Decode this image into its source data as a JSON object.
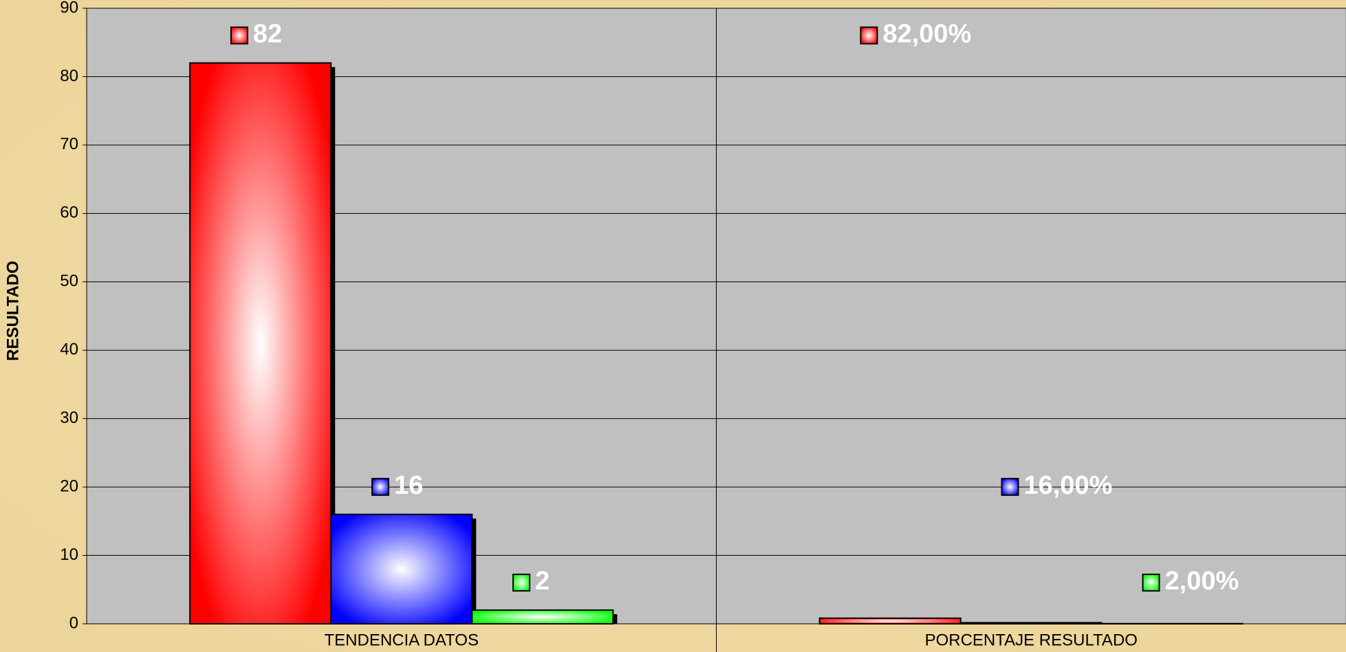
{
  "chart_data": {
    "type": "bar",
    "categories": [
      "TENDENCIA DATOS",
      "PORCENTAJE RESULTADO"
    ],
    "series": [
      {
        "color": "#ff0000",
        "values": [
          82,
          0.82
        ],
        "value_labels": [
          "82",
          "82,00%"
        ]
      },
      {
        "color": "#0000ff",
        "values": [
          16,
          0.16
        ],
        "value_labels": [
          "16",
          "16,00%"
        ]
      },
      {
        "color": "#00ff00",
        "values": [
          2,
          0.02
        ],
        "value_labels": [
          "2",
          "2,00%"
        ]
      }
    ],
    "ylabel": "RESULTADO",
    "ylim": [
      0,
      90
    ],
    "yticks": [
      0,
      10,
      20,
      30,
      40,
      50,
      60,
      70,
      80,
      90
    ],
    "grid": true
  }
}
